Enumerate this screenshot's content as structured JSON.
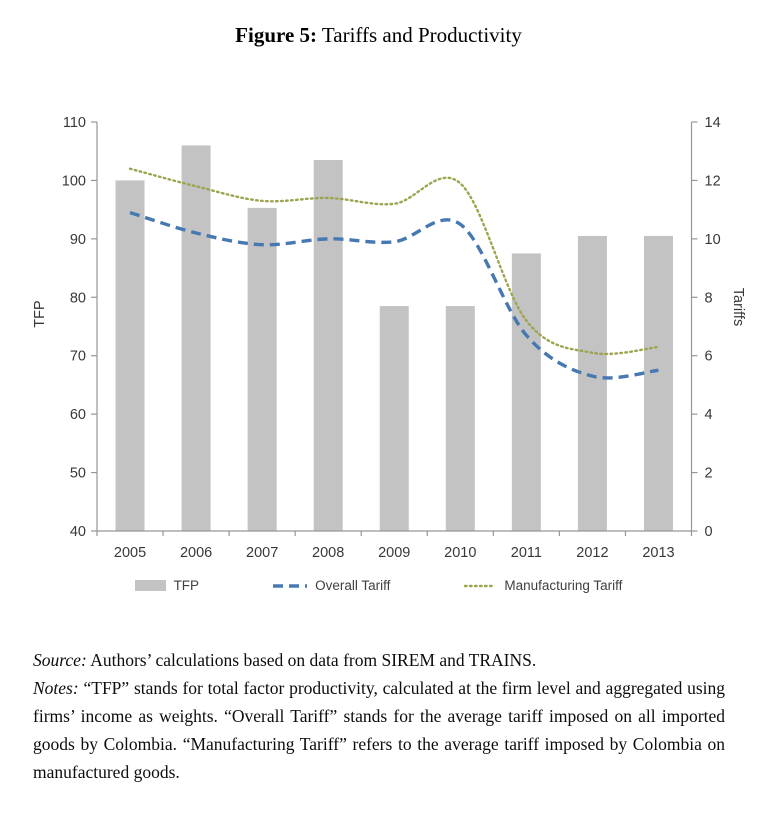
{
  "title": {
    "label": "Figure 5:",
    "caption": "Tariffs and Productivity"
  },
  "colors": {
    "bar": "#c3c3c3",
    "overall_tariff": "#4678b2",
    "manufacturing_tariff": "#9da44f",
    "axis": "#969696",
    "text": "#383838"
  },
  "chart_data": {
    "type": "bar+line dual-axis",
    "categories": [
      "2005",
      "2006",
      "2007",
      "2008",
      "2009",
      "2010",
      "2011",
      "2012",
      "2013"
    ],
    "series": [
      {
        "name": "TFP",
        "type": "bar",
        "axis": "left",
        "values": [
          100,
          106,
          95.3,
          103.5,
          78.5,
          78.5,
          87.5,
          90.5,
          90.5
        ]
      },
      {
        "name": "Overall Tariff",
        "type": "line",
        "style": "dashed",
        "axis": "right",
        "values": [
          10.9,
          10.2,
          9.8,
          10.0,
          9.9,
          10.5,
          6.7,
          5.3,
          5.5
        ]
      },
      {
        "name": "Manufacturing Tariff",
        "type": "line",
        "style": "dotted",
        "axis": "right",
        "values": [
          12.4,
          11.8,
          11.3,
          11.4,
          11.2,
          11.9,
          7.2,
          6.1,
          6.3
        ]
      }
    ],
    "left_axis": {
      "label": "TFP",
      "min": 40,
      "max": 110,
      "step": 10
    },
    "right_axis": {
      "label": "Tariffs",
      "min": 0,
      "max": 14,
      "step": 2
    },
    "grid": "off",
    "legend_position": "bottom"
  },
  "legend": {
    "items": [
      {
        "label": "TFP",
        "swatch": "bar"
      },
      {
        "label": "Overall Tariff",
        "swatch": "dashed-line"
      },
      {
        "label": "Manufacturing Tariff",
        "swatch": "dotted-line"
      }
    ]
  },
  "notes": {
    "source_label": "Source:",
    "source_text": "Authors’ calculations based on data from SIREM and TRAINS.",
    "notes_label": "Notes:",
    "notes_text": "“TFP” stands for total factor productivity, calculated at the firm level and aggregated using firms’ income as weights. “Overall Tariff” stands for the average tariff imposed on all imported goods by Colombia. “Manufacturing Tariff” refers to the average tariff imposed by Colombia on manufactured goods."
  }
}
